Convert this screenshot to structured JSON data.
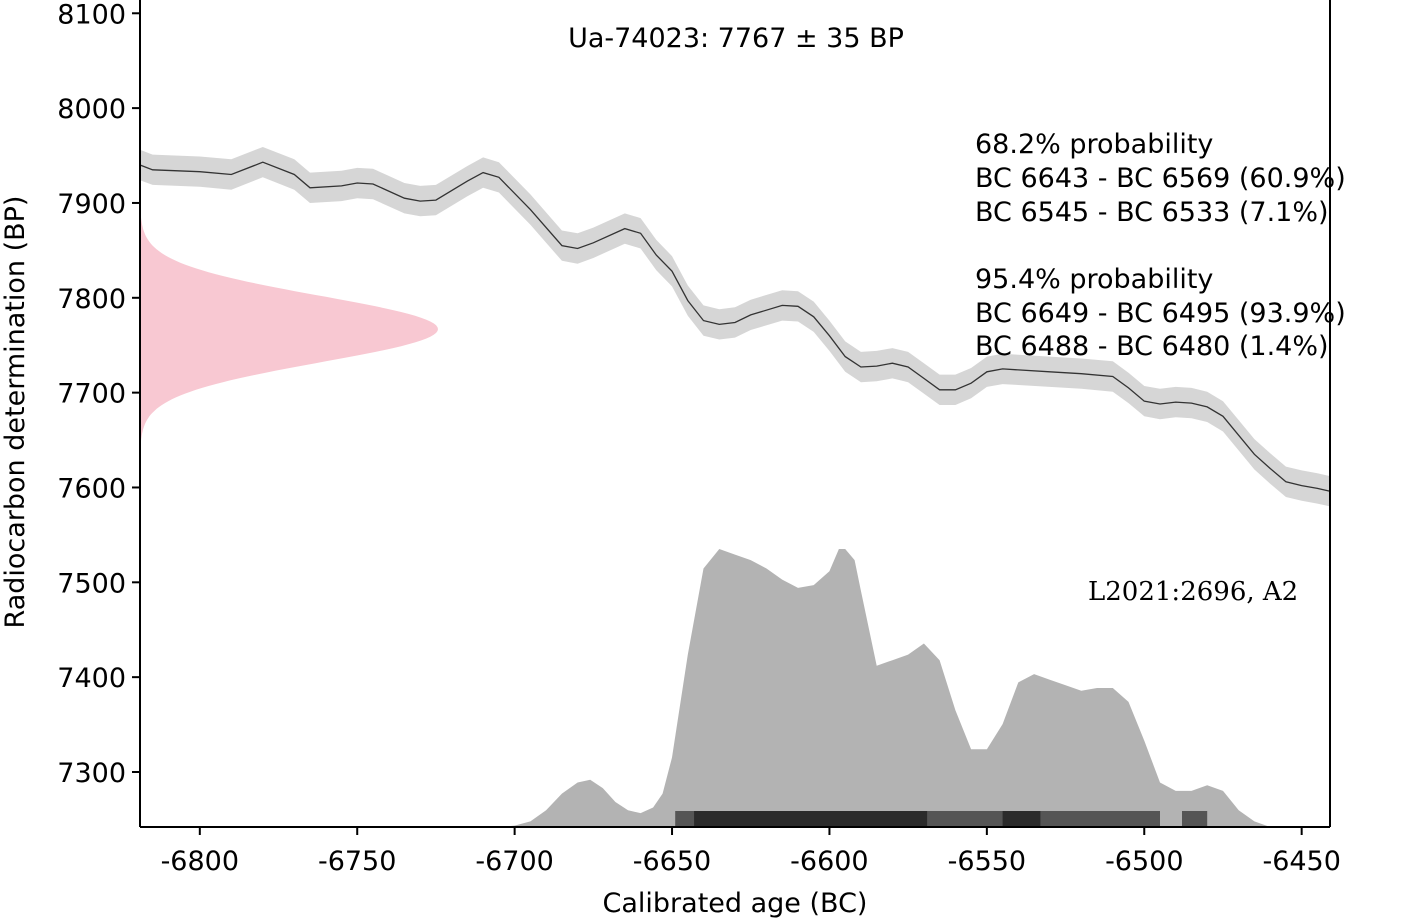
{
  "chart_data": {
    "type": "area",
    "title": "Ua-74023: 7767 ± 35 BP",
    "xlabel": "Calibrated age (BC)",
    "ylabel": "Radiocarbon determination (BP)",
    "xlim": [
      -6819,
      -6441
    ],
    "ylim": [
      7242,
      8114
    ],
    "x_ticks": [
      -6800,
      -6750,
      -6700,
      -6650,
      -6600,
      -6550,
      -6500,
      -6450
    ],
    "y_ticks": [
      7300,
      7400,
      7500,
      7600,
      7700,
      7800,
      7900,
      8000,
      8100
    ],
    "grid": false,
    "calibration_curve": {
      "band_half_width": 16,
      "x": [
        -6819,
        -6815,
        -6800,
        -6790,
        -6780,
        -6770,
        -6765,
        -6755,
        -6750,
        -6745,
        -6735,
        -6730,
        -6725,
        -6715,
        -6710,
        -6705,
        -6695,
        -6685,
        -6680,
        -6675,
        -6665,
        -6660,
        -6655,
        -6650,
        -6645,
        -6640,
        -6635,
        -6630,
        -6625,
        -6615,
        -6610,
        -6605,
        -6600,
        -6595,
        -6590,
        -6585,
        -6580,
        -6575,
        -6570,
        -6565,
        -6560,
        -6555,
        -6550,
        -6545,
        -6540,
        -6530,
        -6520,
        -6510,
        -6505,
        -6500,
        -6495,
        -6490,
        -6485,
        -6480,
        -6475,
        -6470,
        -6465,
        -6460,
        -6455,
        -6450,
        -6445,
        -6441
      ],
      "y": [
        7940,
        7935,
        7933,
        7930,
        7943,
        7930,
        7916,
        7918,
        7921,
        7920,
        7905,
        7902,
        7903,
        7923,
        7932,
        7927,
        7893,
        7855,
        7852,
        7858,
        7873,
        7868,
        7845,
        7828,
        7797,
        7776,
        7772,
        7774,
        7782,
        7792,
        7791,
        7780,
        7760,
        7738,
        7727,
        7728,
        7731,
        7727,
        7715,
        7703,
        7703,
        7710,
        7722,
        7725,
        7724,
        7722,
        7720,
        7717,
        7705,
        7691,
        7688,
        7690,
        7689,
        7685,
        7675,
        7655,
        7635,
        7620,
        7606,
        7602,
        7599,
        7596
      ]
    },
    "measurement": {
      "mean": 7767,
      "sd": 35,
      "color": "#f8c8d2"
    },
    "calibrated_distribution": {
      "x": [
        -6705,
        -6700,
        -6695,
        -6690,
        -6685,
        -6680,
        -6676,
        -6672,
        -6668,
        -6664,
        -6660,
        -6656,
        -6653,
        -6650,
        -6645,
        -6640,
        -6635,
        -6630,
        -6625,
        -6620,
        -6615,
        -6610,
        -6605,
        -6600,
        -6597,
        -6595,
        -6592,
        -6590,
        -6585,
        -6580,
        -6575,
        -6570,
        -6565,
        -6560,
        -6555,
        -6550,
        -6545,
        -6540,
        -6535,
        -6530,
        -6525,
        -6520,
        -6515,
        -6510,
        -6505,
        -6500,
        -6495,
        -6490,
        -6485,
        -6480,
        -6475,
        -6470,
        -6465,
        -6460
      ],
      "density": [
        0,
        0.005,
        0.02,
        0.06,
        0.12,
        0.16,
        0.17,
        0.14,
        0.09,
        0.06,
        0.05,
        0.07,
        0.12,
        0.25,
        0.62,
        0.93,
        1.0,
        0.98,
        0.96,
        0.93,
        0.89,
        0.86,
        0.87,
        0.92,
        1.0,
        1.0,
        0.96,
        0.85,
        0.58,
        0.6,
        0.62,
        0.66,
        0.6,
        0.42,
        0.28,
        0.28,
        0.37,
        0.52,
        0.55,
        0.53,
        0.51,
        0.49,
        0.5,
        0.5,
        0.45,
        0.31,
        0.16,
        0.13,
        0.13,
        0.15,
        0.13,
        0.06,
        0.02,
        0
      ],
      "color": "#b3b3b3"
    },
    "ranges_95_4": [
      [
        -6649,
        -6495
      ],
      [
        -6488,
        -6480
      ]
    ],
    "ranges_68_2": [
      [
        -6643,
        -6569
      ],
      [
        -6545,
        -6533
      ]
    ],
    "probability_text": {
      "header_68": "68.2% probability",
      "line_68_1": "BC 6643 - BC 6569 (60.9%)",
      "line_68_2": "BC 6545 - BC 6533 (7.1%)",
      "header_95": "95.4% probability",
      "line_95_1": "BC 6649 - BC 6495 (93.9%)",
      "line_95_2": "BC 6488 - BC 6480 (1.4%)"
    },
    "annotation": "L2021:2696, A2"
  }
}
